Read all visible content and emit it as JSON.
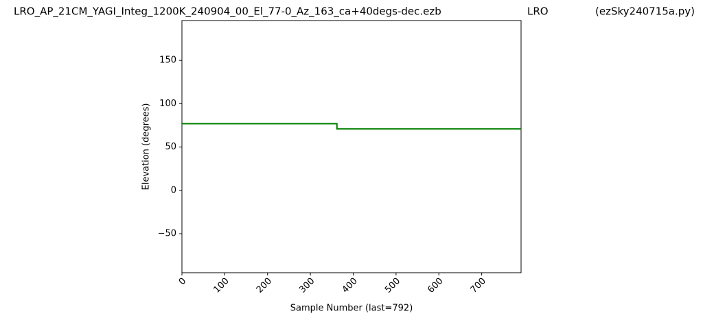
{
  "chart_data": {
    "type": "line",
    "title": "LRO_AP_21CM_YAGI_Integ_1200K_240904_00_El_77-0_Az_163_ca+40degs-dec.ezb",
    "subtitle": "LRO",
    "annotations": [
      "(ezSky240715a.py)"
    ],
    "xlabel": "Sample Number (last=792)",
    "ylabel": "Elevation (degrees)",
    "x": [
      0,
      362,
      362,
      792
    ],
    "series": [
      {
        "color": "#008000",
        "values": [
          77,
          77,
          71,
          71
        ]
      }
    ],
    "xlim": [
      0,
      792
    ],
    "xticks": [
      0,
      100,
      200,
      300,
      400,
      500,
      600,
      700
    ],
    "ylim": [
      -95,
      196
    ],
    "yticks": [
      {
        "value": -50,
        "label": "−50"
      },
      0,
      50,
      100,
      150
    ],
    "grid": false
  }
}
